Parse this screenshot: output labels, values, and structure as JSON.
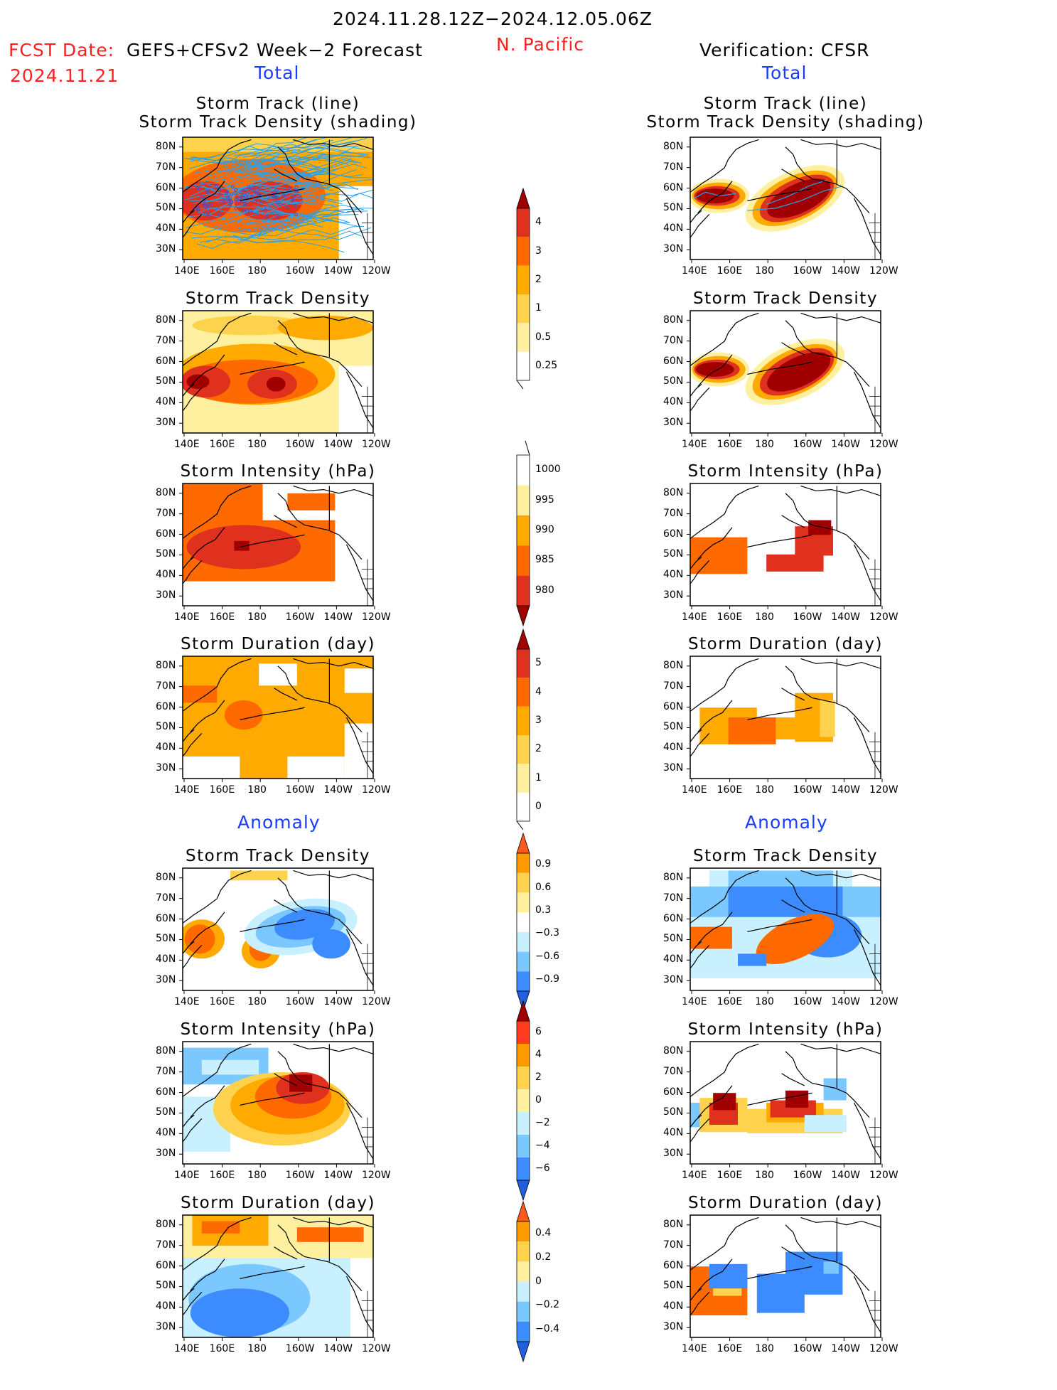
{
  "header": {
    "period": "2024.11.28.12Z−2024.12.05.06Z",
    "region": "N. Pacific",
    "fcst_label": "FCST Date:",
    "fcst_model": "GEFS+CFSv2 Week−2 Forecast",
    "fcst_date": "2024.11.21",
    "verification": "Verification: CFSR"
  },
  "sections": {
    "total_left": "Total",
    "total_right": "Total",
    "anomaly_left": "Anomaly",
    "anomaly_right": "Anomaly"
  },
  "axes": {
    "lat_labels": [
      "80N",
      "70N",
      "60N",
      "50N",
      "40N",
      "30N"
    ],
    "lon_labels": [
      "140E",
      "160E",
      "180",
      "160W",
      "140W",
      "120W"
    ]
  },
  "panels": [
    {
      "id": "track-line",
      "title1": "Storm Track (line)",
      "title2": "Storm Track Density (shading)"
    },
    {
      "id": "track-density",
      "title1": "Storm Track Density"
    },
    {
      "id": "intensity",
      "title1": "Storm Intensity (hPa)"
    },
    {
      "id": "duration",
      "title1": "Storm Duration (day)"
    },
    {
      "id": "anom-density",
      "title1": "Storm Track Density"
    },
    {
      "id": "anom-intensity",
      "title1": "Storm Intensity (hPa)"
    },
    {
      "id": "anom-duration",
      "title1": "Storm Duration (day)"
    }
  ],
  "colorbars": [
    {
      "id": "density",
      "labels": [
        "4",
        "3",
        "2",
        "1",
        "0.5",
        "0.25"
      ],
      "colors": [
        "#a00000",
        "#e0301e",
        "#ff6a00",
        "#ffaa00",
        "#ffd24d",
        "#fff0a0",
        "#ffffff"
      ]
    },
    {
      "id": "intensity",
      "labels": [
        "1000",
        "995",
        "990",
        "985",
        "980"
      ],
      "colors": [
        "#ffffff",
        "#fff0a0",
        "#ffaa00",
        "#ff6a00",
        "#e0301e",
        "#a00000"
      ]
    },
    {
      "id": "duration",
      "labels": [
        "5",
        "4",
        "3",
        "2",
        "1",
        "0"
      ],
      "colors": [
        "#a00000",
        "#e0301e",
        "#ff6a00",
        "#ffaa00",
        "#ffd24d",
        "#fff0a0",
        "#ffffff"
      ]
    },
    {
      "id": "anom-density",
      "labels": [
        "0.9",
        "0.6",
        "0.3",
        "−0.3",
        "−0.6",
        "−0.9"
      ],
      "colors": [
        "#ff5a1e",
        "#ff9a00",
        "#ffd24d",
        "#fff0a0",
        "#ffffff",
        "#c8f0ff",
        "#7ac8ff",
        "#3c8cff",
        "#1f5fe0"
      ]
    },
    {
      "id": "anom-intensity",
      "labels": [
        "6",
        "4",
        "2",
        "0",
        "−2",
        "−4",
        "−6"
      ],
      "colors": [
        "#a00000",
        "#ff3a1e",
        "#ff9a00",
        "#ffd24d",
        "#fff0a0",
        "#c8f0ff",
        "#7ac8ff",
        "#3c8cff",
        "#1f5fe0"
      ]
    },
    {
      "id": "anom-duration",
      "labels": [
        "0.4",
        "0.2",
        "0",
        "−0.2",
        "−0.4"
      ],
      "colors": [
        "#ff5a1e",
        "#ff9a00",
        "#ffd24d",
        "#fff0a0",
        "#c8f0ff",
        "#7ac8ff",
        "#3c8cff",
        "#1f5fe0"
      ]
    }
  ],
  "palette": {
    "dark_red": "#a00000",
    "red": "#e0301e",
    "red_orange": "#ff6a00",
    "orange": "#ffaa00",
    "light_orange": "#ffd24d",
    "pale_yellow": "#fff0a0",
    "pale_blue": "#c8f0ff",
    "light_blue": "#7ac8ff",
    "blue": "#3c8cff",
    "dark_blue": "#1f5fe0",
    "track_line": "#2aa0e8",
    "header_red": "#ff2020",
    "header_blue": "#1a3cff"
  }
}
